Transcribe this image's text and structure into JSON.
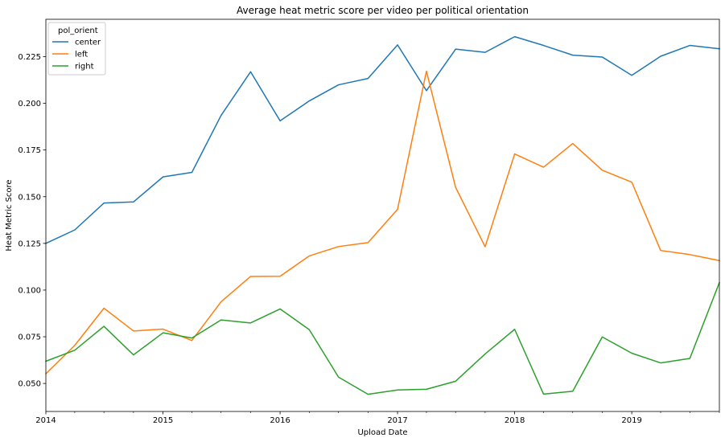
{
  "chart_data": {
    "type": "line",
    "title": "Average heat metric score per video per political orientation",
    "xlabel": "Upload Date",
    "ylabel": "Heat Metric Score",
    "xlim": [
      "2014-01-01",
      "2019-10-01"
    ],
    "ylim": [
      0.035,
      0.245
    ],
    "grid": false,
    "legend": {
      "title": "pol_orient",
      "placement": "top-left"
    },
    "x": [
      "2014-01-01",
      "2014-04-01",
      "2014-07-01",
      "2014-10-01",
      "2015-01-01",
      "2015-04-01",
      "2015-07-01",
      "2015-10-01",
      "2016-01-01",
      "2016-04-01",
      "2016-07-01",
      "2016-10-01",
      "2017-01-01",
      "2017-04-01",
      "2017-07-01",
      "2017-10-01",
      "2018-01-01",
      "2018-04-01",
      "2018-07-01",
      "2018-10-01",
      "2019-01-01",
      "2019-04-01",
      "2019-07-01",
      "2019-10-01"
    ],
    "x_ticks": [
      {
        "label": "2014",
        "date": "2014-01-01"
      },
      {
        "label": "2015",
        "date": "2015-01-01"
      },
      {
        "label": "2016",
        "date": "2016-01-01"
      },
      {
        "label": "2017",
        "date": "2017-01-01"
      },
      {
        "label": "2018",
        "date": "2018-01-01"
      },
      {
        "label": "2019",
        "date": "2019-01-01"
      }
    ],
    "y_ticks": [
      "0.050",
      "0.075",
      "0.100",
      "0.125",
      "0.150",
      "0.175",
      "0.200",
      "0.225"
    ],
    "series": [
      {
        "name": "center",
        "color": "#1f77b4",
        "values": [
          0.125,
          0.1322,
          0.1466,
          0.1472,
          0.1606,
          0.163,
          0.1935,
          0.2169,
          0.1906,
          0.2013,
          0.2099,
          0.2133,
          0.2313,
          0.2068,
          0.229,
          0.2273,
          0.2357,
          0.231,
          0.2258,
          0.2248,
          0.215,
          0.2252,
          0.231,
          0.2292
        ]
      },
      {
        "name": "left",
        "color": "#ff7f0e",
        "values": [
          0.0552,
          0.0704,
          0.0903,
          0.0781,
          0.0791,
          0.073,
          0.0937,
          0.1073,
          0.1074,
          0.1183,
          0.1233,
          0.1254,
          0.1432,
          0.2172,
          0.155,
          0.1232,
          0.1729,
          0.1658,
          0.1785,
          0.1642,
          0.1578,
          0.1212,
          0.119,
          0.1158
        ]
      },
      {
        "name": "right",
        "color": "#2ca02c",
        "values": [
          0.0619,
          0.0678,
          0.0806,
          0.0653,
          0.0771,
          0.0743,
          0.084,
          0.0824,
          0.0899,
          0.0788,
          0.0534,
          0.0442,
          0.0465,
          0.0469,
          0.0512,
          0.0658,
          0.079,
          0.0443,
          0.0458,
          0.0749,
          0.0662,
          0.061,
          0.0634,
          0.104
        ]
      }
    ]
  }
}
